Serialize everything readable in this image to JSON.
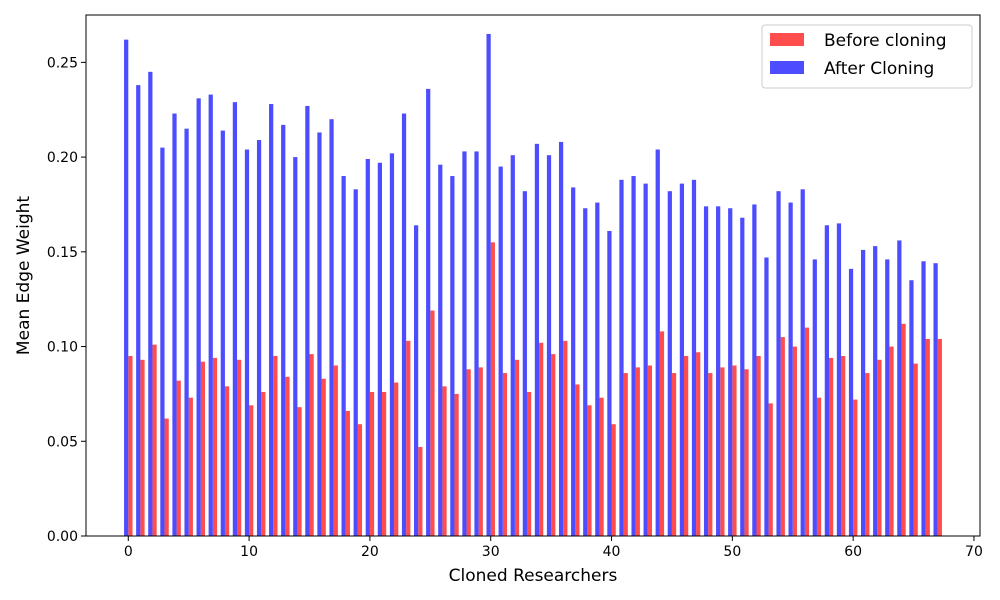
{
  "chart_data": {
    "type": "bar",
    "xlabel": "Cloned Researchers",
    "ylabel": "Mean Edge Weight",
    "xlim": [
      -3.5,
      70.5
    ],
    "ylim": [
      0,
      0.275
    ],
    "xticks": [
      0,
      10,
      20,
      30,
      40,
      50,
      60,
      70
    ],
    "xtick_labels": [
      "0",
      "10",
      "20",
      "30",
      "40",
      "50",
      "60",
      "70"
    ],
    "yticks": [
      0,
      0.05,
      0.1,
      0.15,
      0.2,
      0.25
    ],
    "ytick_labels": [
      "0.00",
      "0.05",
      "0.10",
      "0.15",
      "0.20",
      "0.25"
    ],
    "grid": false,
    "legend_position": "top-right",
    "bar_width": 0.35,
    "x": [
      0,
      1,
      2,
      3,
      4,
      5,
      6,
      7,
      8,
      9,
      10,
      11,
      12,
      13,
      14,
      15,
      16,
      17,
      18,
      19,
      20,
      21,
      22,
      23,
      24,
      25,
      26,
      27,
      28,
      29,
      30,
      31,
      32,
      33,
      34,
      35,
      36,
      37,
      38,
      39,
      40,
      41,
      42,
      43,
      44,
      45,
      46,
      47,
      48,
      49,
      50,
      51,
      52,
      53,
      54,
      55,
      56,
      57,
      58,
      59,
      60,
      61,
      62,
      63,
      64,
      65,
      66,
      67
    ],
    "series": [
      {
        "name": "Before cloning",
        "color": "#ff4d4d",
        "offset": 0.175,
        "values": [
          0.095,
          0.093,
          0.101,
          0.062,
          0.082,
          0.073,
          0.092,
          0.094,
          0.079,
          0.093,
          0.069,
          0.076,
          0.095,
          0.084,
          0.068,
          0.096,
          0.083,
          0.09,
          0.066,
          0.059,
          0.076,
          0.076,
          0.081,
          0.103,
          0.047,
          0.119,
          0.079,
          0.075,
          0.088,
          0.089,
          0.155,
          0.086,
          0.093,
          0.076,
          0.102,
          0.096,
          0.103,
          0.08,
          0.069,
          0.073,
          0.059,
          0.086,
          0.089,
          0.09,
          0.108,
          0.086,
          0.095,
          0.097,
          0.086,
          0.089,
          0.09,
          0.088,
          0.095,
          0.07,
          0.105,
          0.1,
          0.11,
          0.073,
          0.094,
          0.095,
          0.072,
          0.086,
          0.093,
          0.1,
          0.112,
          0.091,
          0.104,
          0.104
        ]
      },
      {
        "name": "After Cloning",
        "color": "#4d4dff",
        "offset": -0.175,
        "values": [
          0.262,
          0.238,
          0.245,
          0.205,
          0.223,
          0.215,
          0.231,
          0.233,
          0.214,
          0.229,
          0.204,
          0.209,
          0.228,
          0.217,
          0.2,
          0.227,
          0.213,
          0.22,
          0.19,
          0.183,
          0.199,
          0.197,
          0.202,
          0.223,
          0.164,
          0.236,
          0.196,
          0.19,
          0.203,
          0.203,
          0.265,
          0.195,
          0.201,
          0.182,
          0.207,
          0.201,
          0.208,
          0.184,
          0.173,
          0.176,
          0.161,
          0.188,
          0.19,
          0.186,
          0.204,
          0.182,
          0.186,
          0.188,
          0.174,
          0.174,
          0.173,
          0.168,
          0.175,
          0.147,
          0.182,
          0.176,
          0.183,
          0.146,
          0.164,
          0.165,
          0.141,
          0.151,
          0.153,
          0.146,
          0.156,
          0.135,
          0.145,
          0.144
        ]
      }
    ]
  }
}
